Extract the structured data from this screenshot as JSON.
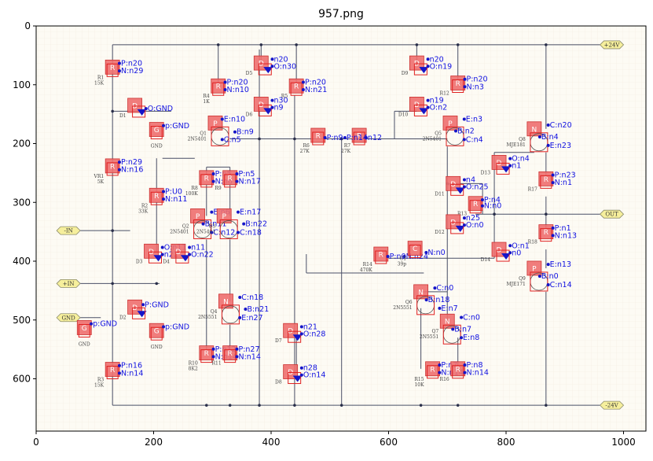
{
  "title": "957.png",
  "axes": {
    "x_ticks": [
      "0",
      "200",
      "400",
      "600",
      "800",
      "1000"
    ],
    "y_ticks": [
      "0",
      "100",
      "200",
      "300",
      "400",
      "500",
      "600"
    ]
  },
  "ports": [
    {
      "id": "vpos",
      "label": "+24V",
      "x": 980,
      "y": 32
    },
    {
      "id": "vneg",
      "label": "-24V",
      "x": 980,
      "y": 645
    },
    {
      "id": "out",
      "label": "OUT",
      "x": 980,
      "y": 320
    },
    {
      "id": "inn",
      "label": "-IN",
      "x": 55,
      "y": 348
    },
    {
      "id": "inp",
      "label": "+IN",
      "x": 55,
      "y": 438
    },
    {
      "id": "gnd",
      "label": "GND",
      "x": 55,
      "y": 496
    }
  ],
  "components": [
    {
      "id": "R1",
      "letter": "R",
      "x": 130,
      "y": 70,
      "ref": "R1",
      "value": "15K",
      "pins": [
        {
          "label": "P:n20",
          "dx": 3,
          "dy": -3
        },
        {
          "label": "N:n29",
          "dx": 3,
          "dy": 13
        }
      ]
    },
    {
      "id": "D1",
      "letter": "D",
      "x": 168,
      "y": 135,
      "ref": "D1",
      "value": "",
      "pins": [
        {
          "label": "O:GND",
          "dx": 12,
          "dy": 12
        }
      ]
    },
    {
      "id": "G1",
      "letter": "G",
      "x": 205,
      "y": 176,
      "ref": "GND",
      "value": "",
      "pins": [
        {
          "label": "p:GND",
          "dx": 3,
          "dy": -3
        }
      ]
    },
    {
      "id": "VR1",
      "letter": "R",
      "x": 130,
      "y": 238,
      "ref": "VR1",
      "value": "5K",
      "pins": [
        {
          "label": "P:n29",
          "dx": 3,
          "dy": -3
        },
        {
          "label": "N:n16",
          "dx": 3,
          "dy": 13
        }
      ]
    },
    {
      "id": "R2",
      "letter": "R",
      "x": 205,
      "y": 288,
      "ref": "R2",
      "value": "33K",
      "pins": [
        {
          "label": "P:U0",
          "dx": 3,
          "dy": -3
        },
        {
          "label": "N:n11",
          "dx": 3,
          "dy": 13
        }
      ]
    },
    {
      "id": "D3",
      "letter": "D",
      "x": 196,
      "y": 383,
      "ref": "D3",
      "value": "",
      "pins": [
        {
          "label": "O:n11",
          "dx": 12,
          "dy": -3
        },
        {
          "label": "n22",
          "dx": 12,
          "dy": 12
        }
      ]
    },
    {
      "id": "D4",
      "letter": "D",
      "x": 242,
      "y": 383,
      "ref": "D4",
      "value": "",
      "pins": [
        {
          "label": "n11",
          "dx": 12,
          "dy": -3
        },
        {
          "label": "O:n22",
          "dx": 12,
          "dy": 12
        }
      ]
    },
    {
      "id": "D2",
      "letter": "D",
      "x": 168,
      "y": 478,
      "ref": "D2",
      "value": "",
      "pins": [
        {
          "label": "P:GND",
          "dx": 6,
          "dy": 0
        }
      ]
    },
    {
      "id": "G2",
      "letter": "G",
      "x": 205,
      "y": 518,
      "ref": "GND",
      "value": "",
      "pins": [
        {
          "label": "p:GND",
          "dx": 3,
          "dy": -3
        }
      ]
    },
    {
      "id": "G3",
      "letter": "G",
      "x": 82,
      "y": 513,
      "ref": "GND",
      "value": "",
      "pins": [
        {
          "label": "p:GND",
          "dx": 3,
          "dy": -3
        }
      ]
    },
    {
      "id": "R3",
      "letter": "R",
      "x": 130,
      "y": 584,
      "ref": "R3",
      "value": "15K",
      "pins": [
        {
          "label": "P:n16",
          "dx": 3,
          "dy": -3
        },
        {
          "label": "N:n14",
          "dx": 3,
          "dy": 13
        }
      ]
    },
    {
      "id": "R4",
      "letter": "R",
      "x": 310,
      "y": 102,
      "ref": "R4",
      "value": "1K",
      "pins": [
        {
          "label": "P:n20",
          "dx": 3,
          "dy": -3
        },
        {
          "label": "N:n10",
          "dx": 3,
          "dy": 13
        }
      ]
    },
    {
      "id": "D5",
      "letter": "D",
      "x": 383,
      "y": 63,
      "ref": "D5",
      "value": "",
      "pins": [
        {
          "label": "n20",
          "dx": 12,
          "dy": -3
        },
        {
          "label": "O:n30",
          "dx": 12,
          "dy": 12
        }
      ]
    },
    {
      "id": "D6",
      "letter": "D",
      "x": 383,
      "y": 133,
      "ref": "D6",
      "value": "",
      "pins": [
        {
          "label": "n30",
          "dx": 12,
          "dy": -3
        },
        {
          "label": "n9",
          "dx": 12,
          "dy": 12
        }
      ]
    },
    {
      "id": "R5",
      "letter": "R",
      "x": 443,
      "y": 102,
      "ref": "R5",
      "value": "",
      "pins": [
        {
          "label": "P:n20",
          "dx": 3,
          "dy": -3
        },
        {
          "label": "N:n21",
          "dx": 3,
          "dy": 13
        }
      ]
    },
    {
      "id": "Q1",
      "letter": "P",
      "x": 305,
      "y": 165,
      "ref": "Q1",
      "value": "2N5401",
      "pins": [
        {
          "label": "E:n10",
          "dx": 3,
          "dy": -3
        },
        {
          "label": "B:n9",
          "dx": 30,
          "dy": 24
        },
        {
          "label": "C:n5",
          "dx": 3,
          "dy": 40
        }
      ]
    },
    {
      "id": "R6",
      "letter": "R",
      "x": 480,
      "y": 186,
      "ref": "R6",
      "value": "27K",
      "pins": [
        {
          "label": "P:n9",
          "dx": 3,
          "dy": 10
        }
      ]
    },
    {
      "id": "R7",
      "letter": "R",
      "x": 550,
      "y": 186,
      "ref": "R7",
      "value": "27K",
      "pins": [
        {
          "label": "P:n14",
          "dx": -42,
          "dy": 10
        },
        {
          "label": "n12",
          "dx": 3,
          "dy": 10
        }
      ]
    },
    {
      "id": "R8",
      "letter": "R",
      "x": 290,
      "y": 258,
      "ref": "R8",
      "value": "100K",
      "pins": [
        {
          "label": "P:n5",
          "dx": 3,
          "dy": -3
        },
        {
          "label": "N:n6",
          "dx": 3,
          "dy": 13
        }
      ]
    },
    {
      "id": "R9",
      "letter": "R",
      "x": 330,
      "y": 258,
      "ref": "R9",
      "value": "",
      "pins": [
        {
          "label": "P:n5",
          "dx": 3,
          "dy": -3
        },
        {
          "label": "N:n17",
          "dx": 3,
          "dy": 13
        }
      ]
    },
    {
      "id": "Q2",
      "letter": "P",
      "x": 275,
      "y": 323,
      "ref": "Q2",
      "value": "2N5401",
      "pins": [
        {
          "label": "E:n6",
          "dx": 18,
          "dy": -3
        },
        {
          "label": "B:n11",
          "dx": 0,
          "dy": 22
        },
        {
          "label": "C:n12",
          "dx": 18,
          "dy": 40
        }
      ]
    },
    {
      "id": "Q3",
      "letter": "P",
      "x": 320,
      "y": 323,
      "ref": "Q3",
      "value": "2N5401",
      "pins": [
        {
          "label": "E:n17",
          "dx": 18,
          "dy": -3
        },
        {
          "label": "B:n22",
          "dx": 30,
          "dy": 22
        },
        {
          "label": "C:n18",
          "dx": 18,
          "dy": 40
        }
      ]
    },
    {
      "id": "Q4",
      "letter": "N",
      "x": 323,
      "y": 468,
      "ref": "Q4",
      "value": "2N5551",
      "pins": [
        {
          "label": "C:n18",
          "dx": 18,
          "dy": -3
        },
        {
          "label": "B:n21",
          "dx": 30,
          "dy": 22
        },
        {
          "label": "E:n27",
          "dx": 18,
          "dy": 40
        }
      ]
    },
    {
      "id": "D7",
      "letter": "D",
      "x": 433,
      "y": 518,
      "ref": "D7",
      "value": "",
      "pins": [
        {
          "label": "n21",
          "dx": 12,
          "dy": -3
        },
        {
          "label": "O:n28",
          "dx": 12,
          "dy": 12
        }
      ]
    },
    {
      "id": "D8",
      "letter": "D",
      "x": 433,
      "y": 588,
      "ref": "D8",
      "value": "",
      "pins": [
        {
          "label": "n28",
          "dx": 12,
          "dy": -3
        },
        {
          "label": "O:n14",
          "dx": 12,
          "dy": 12
        }
      ]
    },
    {
      "id": "R10",
      "letter": "R",
      "x": 290,
      "y": 556,
      "ref": "R10",
      "value": "8K2",
      "pins": [
        {
          "label": "P:n12",
          "dx": 3,
          "dy": -3
        },
        {
          "label": "N:n14",
          "dx": 3,
          "dy": 13
        }
      ]
    },
    {
      "id": "R11",
      "letter": "R",
      "x": 330,
      "y": 556,
      "ref": "R11",
      "value": "",
      "pins": [
        {
          "label": "P:n27",
          "dx": 3,
          "dy": -3
        },
        {
          "label": "N:n14",
          "dx": 3,
          "dy": 13
        }
      ]
    },
    {
      "id": "D9",
      "letter": "D",
      "x": 648,
      "y": 63,
      "ref": "D9",
      "value": "",
      "pins": [
        {
          "label": "n20",
          "dx": 12,
          "dy": -3
        },
        {
          "label": "O:n19",
          "dx": 12,
          "dy": 12
        }
      ]
    },
    {
      "id": "D10",
      "letter": "D",
      "x": 648,
      "y": 133,
      "ref": "D10",
      "value": "",
      "pins": [
        {
          "label": "n19",
          "dx": 12,
          "dy": -3
        },
        {
          "label": "O:n2",
          "dx": 12,
          "dy": 12
        }
      ]
    },
    {
      "id": "R12",
      "letter": "R",
      "x": 718,
      "y": 97,
      "ref": "R12",
      "value": "",
      "pins": [
        {
          "label": "P:n20",
          "dx": 3,
          "dy": -3
        },
        {
          "label": "N:n3",
          "dx": 3,
          "dy": 13
        }
      ]
    },
    {
      "id": "Q5",
      "letter": "P",
      "x": 705,
      "y": 165,
      "ref": "Q5",
      "value": "2N5401",
      "pins": [
        {
          "label": "E:n3",
          "dx": 18,
          "dy": -3
        },
        {
          "label": "B:n2",
          "dx": 0,
          "dy": 22
        },
        {
          "label": "C:n4",
          "dx": 18,
          "dy": 40
        }
      ]
    },
    {
      "id": "D11",
      "letter": "D",
      "x": 710,
      "y": 268,
      "ref": "D11",
      "value": "",
      "pins": [
        {
          "label": "n4",
          "dx": 12,
          "dy": -3
        },
        {
          "label": "O:n25",
          "dx": 12,
          "dy": 12
        }
      ]
    },
    {
      "id": "R13",
      "letter": "R",
      "x": 748,
      "y": 302,
      "ref": "R13",
      "value": "",
      "pins": [
        {
          "label": "P:n4",
          "dx": 3,
          "dy": -3
        },
        {
          "label": "N:n0",
          "dx": 3,
          "dy": 10
        }
      ]
    },
    {
      "id": "D12",
      "letter": "D",
      "x": 710,
      "y": 333,
      "ref": "D12",
      "value": "",
      "pins": [
        {
          "label": "n25",
          "dx": 12,
          "dy": -3
        },
        {
          "label": "O:n0",
          "dx": 12,
          "dy": 12
        }
      ]
    },
    {
      "id": "R14",
      "letter": "R",
      "x": 587,
      "y": 388,
      "ref": "R14",
      "value": "470K",
      "pins": [
        {
          "label": "P:n0",
          "dx": 3,
          "dy": 10
        },
        {
          "label": "N:n24",
          "dx": 38,
          "dy": 10
        }
      ]
    },
    {
      "id": "C1",
      "letter": "C",
      "x": 645,
      "y": 378,
      "ref": "C1",
      "value": "39p",
      "pins": [
        {
          "label": "N:n0",
          "dx": 12,
          "dy": 14
        }
      ]
    },
    {
      "id": "Q6",
      "letter": "N",
      "x": 655,
      "y": 452,
      "ref": "Q6",
      "value": "2N5551",
      "pins": [
        {
          "label": "C:n0",
          "dx": 18,
          "dy": -3
        },
        {
          "label": "B:n18",
          "dx": 0,
          "dy": 22
        },
        {
          "label": "E:n7",
          "dx": 28,
          "dy": 40
        }
      ]
    },
    {
      "id": "Q7",
      "letter": "N",
      "x": 700,
      "y": 502,
      "ref": "Q7",
      "value": "2N5551",
      "pins": [
        {
          "label": "C:n0",
          "dx": 18,
          "dy": -3
        },
        {
          "label": "B:n7",
          "dx": 0,
          "dy": 22
        },
        {
          "label": "E:n8",
          "dx": 18,
          "dy": 40
        }
      ]
    },
    {
      "id": "R15",
      "letter": "R",
      "x": 675,
      "y": 583,
      "ref": "R15",
      "value": "10K",
      "pins": [
        {
          "label": "P:n7",
          "dx": 3,
          "dy": -3
        },
        {
          "label": "N:n14",
          "dx": 3,
          "dy": 13
        }
      ]
    },
    {
      "id": "R16",
      "letter": "R",
      "x": 718,
      "y": 583,
      "ref": "R16",
      "value": "",
      "pins": [
        {
          "label": "P:n8",
          "dx": 3,
          "dy": -3
        },
        {
          "label": "N:n14",
          "dx": 3,
          "dy": 13
        }
      ]
    },
    {
      "id": "Q8",
      "letter": "N",
      "x": 848,
      "y": 175,
      "ref": "Q8",
      "value": "MJE181",
      "pins": [
        {
          "label": "C:n20",
          "dx": 18,
          "dy": -3
        },
        {
          "label": "B:n4",
          "dx": 0,
          "dy": 22
        },
        {
          "label": "E:n23",
          "dx": 18,
          "dy": 40
        }
      ]
    },
    {
      "id": "D13",
      "letter": "D",
      "x": 788,
      "y": 232,
      "ref": "D13",
      "value": "",
      "pins": [
        {
          "label": "O:n4",
          "dx": 12,
          "dy": -3
        },
        {
          "label": "n1",
          "dx": 12,
          "dy": 12
        }
      ]
    },
    {
      "id": "R17",
      "letter": "R",
      "x": 868,
      "y": 260,
      "ref": "R17",
      "value": "",
      "pins": [
        {
          "label": "P:n23",
          "dx": 3,
          "dy": -3
        },
        {
          "label": "N:n1",
          "dx": 3,
          "dy": 13
        }
      ]
    },
    {
      "id": "R18",
      "letter": "R",
      "x": 868,
      "y": 350,
      "ref": "R18",
      "value": "",
      "pins": [
        {
          "label": "P:n1",
          "dx": 3,
          "dy": -3
        },
        {
          "label": "N:n13",
          "dx": 3,
          "dy": 13
        }
      ]
    },
    {
      "id": "D14",
      "letter": "D",
      "x": 788,
      "y": 380,
      "ref": "D14",
      "value": "",
      "pins": [
        {
          "label": "O:n1",
          "dx": 12,
          "dy": -3
        },
        {
          "label": "n0",
          "dx": 12,
          "dy": 12
        }
      ]
    },
    {
      "id": "Q9",
      "letter": "P",
      "x": 848,
      "y": 412,
      "ref": "Q9",
      "value": "MJE171",
      "pins": [
        {
          "label": "E:n13",
          "dx": 18,
          "dy": -3
        },
        {
          "label": "B:n0",
          "dx": 0,
          "dy": 22
        },
        {
          "label": "C:n14",
          "dx": 18,
          "dy": 40
        }
      ]
    }
  ]
}
